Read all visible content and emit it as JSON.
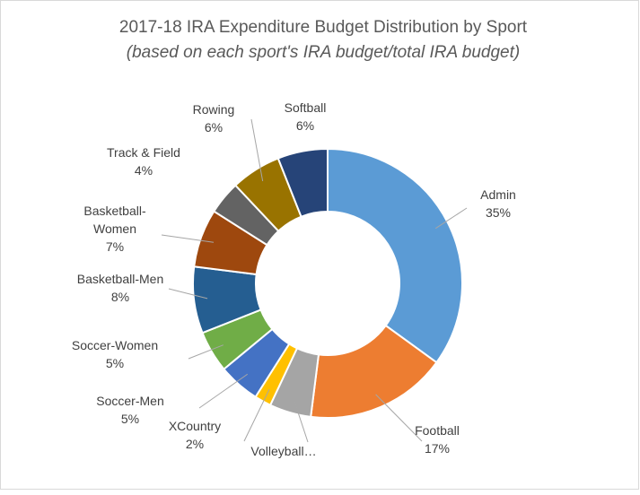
{
  "chart_data": {
    "type": "donut",
    "title": "2017-18 IRA Expenditure Budget Distribution by Sport",
    "subtitle": "(based on each sport's IRA budget/total IRA budget)",
    "categories": [
      "Admin",
      "Football",
      "Volleyball…",
      "XCountry",
      "Soccer-Men",
      "Soccer-Women",
      "Basketball-Men",
      "Basketball-Women",
      "Track & Field",
      "Rowing",
      "Softball"
    ],
    "values": [
      35,
      17,
      5,
      2,
      5,
      5,
      8,
      7,
      4,
      6,
      6
    ],
    "value_labels": [
      "35%",
      "17%",
      null,
      "2%",
      "5%",
      "5%",
      "8%",
      "7%",
      "4%",
      "6%",
      "6%"
    ],
    "colors": [
      "#5b9bd5",
      "#ed7d31",
      "#a5a5a5",
      "#ffc000",
      "#4472c4",
      "#70ad47",
      "#255e91",
      "#9e480e",
      "#636363",
      "#997300",
      "#264478"
    ]
  }
}
